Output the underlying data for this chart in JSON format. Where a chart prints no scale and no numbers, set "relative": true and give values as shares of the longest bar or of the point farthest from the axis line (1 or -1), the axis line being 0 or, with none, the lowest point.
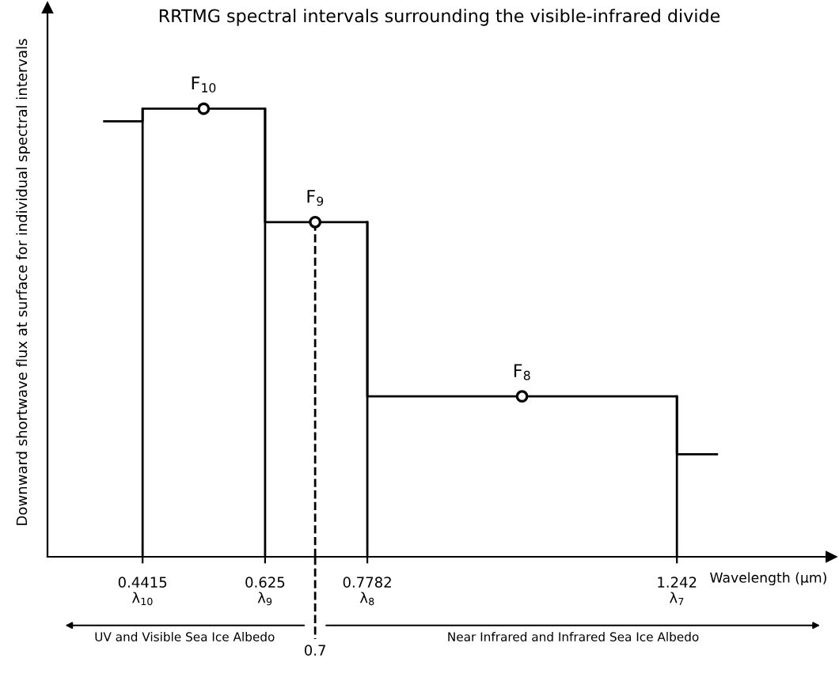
{
  "chart_data": {
    "type": "step",
    "title": "RRTMG spectral intervals surrounding the visible-infrared divide",
    "xlabel": "Wavelength (μm)",
    "ylabel": "Downward shortwave flux at surface for individual spectral intervals",
    "relative": true,
    "series": [
      {
        "color": "#000000",
        "x": [
          0.384,
          0.4415,
          0.625,
          0.7782,
          1.242,
          1.302
        ],
        "values": [
          0.972,
          1,
          0.747,
          0.358,
          0.229,
          0.229
        ]
      },
      {
        "type": "scatter",
        "color": "#000000",
        "marker": "circle",
        "x": [
          0.533,
          0.7,
          1.01
        ],
        "values": [
          1,
          0.747,
          0.358
        ]
      }
    ],
    "xlim": [
      0.299,
      1.473
    ],
    "xticks": [
      0.4415,
      0.625,
      0.7782,
      1.242
    ],
    "ref_lines": [
      {
        "axis": "x",
        "value": 0.7,
        "label": "0.7",
        "line_style": "dashed",
        "color": "#000000"
      },
      {
        "axis": "x",
        "value": 0.4415,
        "label": "λ$_{10}$",
        "line_style": "solid",
        "color": "#000000"
      },
      {
        "axis": "x",
        "value": 0.625,
        "label": "λ$_{9}$",
        "line_style": "solid",
        "color": "#000000"
      },
      {
        "axis": "x",
        "value": 0.7782,
        "label": "λ$_{8}$",
        "line_style": "solid",
        "color": "#000000"
      },
      {
        "axis": "x",
        "value": 1.242,
        "label": "λ$_{7}$",
        "line_style": "solid",
        "color": "#000000"
      }
    ],
    "annotations": [
      {
        "text": "F$_{10}$",
        "x": 0.533,
        "y": 1
      },
      {
        "text": "F$_{9}$",
        "x": 0.7,
        "y": 0.747
      },
      {
        "text": "F$_{8}$",
        "x": 1.01,
        "y": 0.358
      },
      "UV and Visible Sea Ice Albedo",
      "Near Infrared and Infrared Sea Ice Albedo"
    ],
    "grid": false,
    "legend": false
  }
}
